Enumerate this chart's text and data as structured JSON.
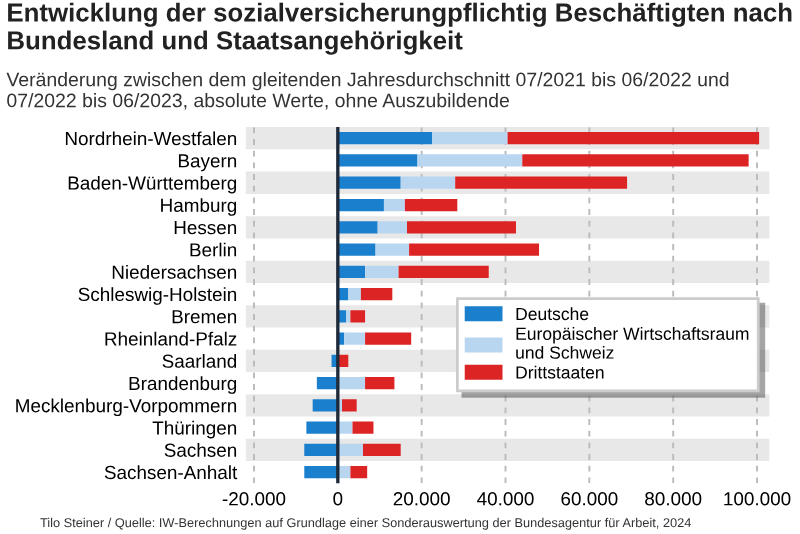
{
  "chart_data": {
    "type": "bar",
    "orientation": "horizontal",
    "stacked": true,
    "title": "Entwicklung der sozialversicherungpflichtig Beschäftigten nach Bundesland und Staatsangehörigkeit",
    "subtitle": "Veränderung zwischen dem gleitenden Jahresdurchschnitt 07/2021 bis 06/2022 und 07/2022 bis 06/2023, absolute Werte, ohne Auszubildende",
    "categories": [
      "Nordrhein-Westfalen",
      "Bayern",
      "Baden-Württemberg",
      "Hamburg",
      "Hessen",
      "Berlin",
      "Niedersachsen",
      "Schleswig-Holstein",
      "Bremen",
      "Rheinland-Pfalz",
      "Saarland",
      "Brandenburg",
      "Mecklenburg-Vorpommern",
      "Thüringen",
      "Sachsen",
      "Sachsen-Anhalt"
    ],
    "series": [
      {
        "name": "Deutsche",
        "color": "#1a7fcc",
        "values": [
          22500,
          19000,
          15000,
          11000,
          9500,
          9000,
          6500,
          2500,
          2000,
          1500,
          -1500,
          -5000,
          -6000,
          -7500,
          -8000,
          -8000
        ]
      },
      {
        "name": "Europäischer Wirtschaftsraum und Schweiz",
        "color": "#b8d6f0",
        "values": [
          18000,
          25000,
          13000,
          5000,
          7000,
          8000,
          8000,
          3000,
          1000,
          5000,
          null,
          6500,
          1000,
          3500,
          6000,
          3000
        ]
      },
      {
        "name": "Drittstaaten",
        "color": "#dd2424",
        "values": [
          60000,
          54000,
          41000,
          12500,
          26000,
          31000,
          21500,
          7500,
          3500,
          11000,
          2500,
          7000,
          3500,
          5000,
          9000,
          4000
        ]
      }
    ],
    "xlim": [
      -22000,
      103000
    ],
    "xticks": [
      {
        "value": -20000,
        "label": "-20.000"
      },
      0,
      {
        "value": 20000,
        "label": "20.000"
      },
      {
        "value": 40000,
        "label": "40.000"
      },
      {
        "value": 60000,
        "label": "60.000"
      },
      {
        "value": 80000,
        "label": "80.000"
      },
      {
        "value": 100000,
        "label": "100.000"
      }
    ],
    "grid": "x",
    "ref_lines": [
      {
        "axis": "x",
        "value": 0,
        "color": "#1e2a3a",
        "line_style": "solid"
      }
    ],
    "legend": "bottom right",
    "annotations": [
      "Tilo Steiner / Quelle: IW-Berechnungen auf Grundlage einer Sonderauswertung der Bundesagentur für Arbeit, 2024"
    ]
  }
}
